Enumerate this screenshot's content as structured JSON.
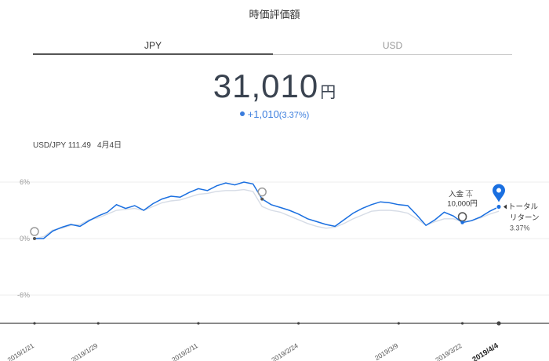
{
  "header": {
    "title": "時価評価額"
  },
  "tabs": [
    {
      "label": "JPY",
      "active": true
    },
    {
      "label": "USD",
      "active": false
    }
  ],
  "balance": {
    "amount": "31,010",
    "unit": "円"
  },
  "change": {
    "value": "+1,010",
    "percent": "(3.37%)"
  },
  "fx": {
    "pair_rate": "USD/JPY 111.49",
    "date": "4月4日"
  },
  "colors": {
    "accent": "#1a6fe0",
    "benchmark": "#d6dce6",
    "grid": "#eeeeee"
  },
  "chart_data": {
    "type": "line",
    "y_ticks": [
      "6%",
      "0%",
      "-6%"
    ],
    "ylim": [
      -9,
      7
    ],
    "x_ticks": [
      "2019/1/21",
      "2019/1/29",
      "2019/2/11",
      "2019/2/24",
      "2019/3/9",
      "2019/3/22",
      "2019/4/4"
    ],
    "series": [
      {
        "role": "portfolio",
        "values": [
          0.0,
          0.0,
          0.8,
          1.2,
          1.5,
          1.3,
          1.9,
          2.4,
          2.8,
          3.6,
          3.2,
          3.5,
          3.0,
          3.7,
          4.2,
          4.5,
          4.4,
          4.9,
          5.3,
          5.1,
          5.6,
          5.9,
          5.7,
          6.0,
          5.8,
          4.2,
          3.6,
          3.3,
          3.0,
          2.6,
          2.1,
          1.8,
          1.5,
          1.3,
          2.0,
          2.7,
          3.2,
          3.6,
          3.9,
          3.8,
          3.6,
          3.5,
          2.5,
          1.4,
          2.0,
          2.8,
          2.4,
          1.7,
          1.9,
          2.3,
          2.9,
          3.37
        ]
      },
      {
        "role": "benchmark",
        "values": [
          0.0,
          0.2,
          0.9,
          1.1,
          1.4,
          1.5,
          2.0,
          2.2,
          2.6,
          3.0,
          3.1,
          3.2,
          3.0,
          3.4,
          3.8,
          4.0,
          4.1,
          4.4,
          4.7,
          4.8,
          5.0,
          5.1,
          5.1,
          5.2,
          5.0,
          3.4,
          3.0,
          2.8,
          2.4,
          2.0,
          1.6,
          1.3,
          1.1,
          1.2,
          1.6,
          2.1,
          2.5,
          2.9,
          3.0,
          3.0,
          2.9,
          2.7,
          2.1,
          1.4,
          1.8,
          2.1,
          2.1,
          1.8,
          1.9,
          2.2,
          2.6,
          2.9
        ]
      }
    ],
    "markers": [
      {
        "type": "deposit",
        "label": "入金",
        "amount": "10,000円",
        "index": 47
      },
      {
        "type": "total-return",
        "label_line1": "トータル",
        "label_line2": "リターン",
        "value": "3.37%",
        "index": 51
      }
    ]
  }
}
